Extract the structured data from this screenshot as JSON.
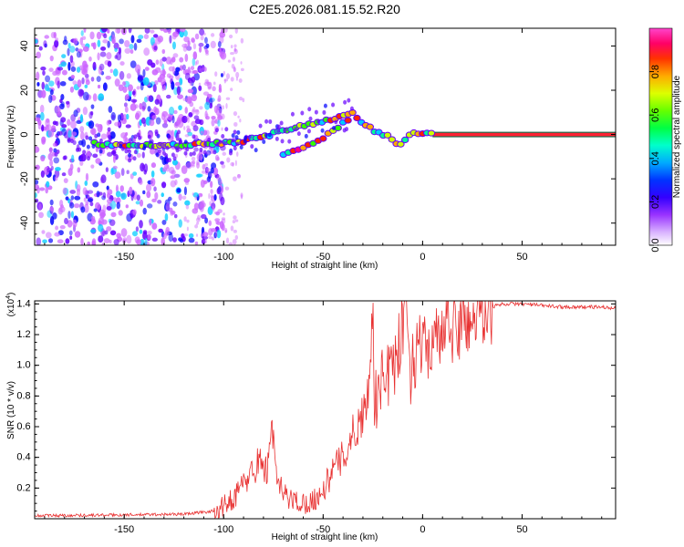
{
  "title": "C2E5.2026.081.15.52.R20",
  "chart_data": [
    {
      "type": "heatmap",
      "name": "spectrogram",
      "xlabel": "Height of straight line (km)",
      "ylabel": "Frequency (Hz)",
      "xlim": [
        -195,
        97
      ],
      "ylim": [
        -50,
        48
      ],
      "xticks": [
        -150,
        -100,
        -50,
        0,
        50
      ],
      "yticks": [
        -40,
        -20,
        0,
        20,
        40
      ],
      "colorbar": {
        "label": "Normalized spectral amplitude",
        "range": [
          0,
          1
        ],
        "ticks": [
          0.0,
          0.2,
          0.4,
          0.6,
          0.8
        ],
        "colormap": [
          "#ffffff",
          "#cc66ff",
          "#6600ff",
          "#0000ff",
          "#00ccff",
          "#00ff99",
          "#33ff00",
          "#ccff00",
          "#ffaa00",
          "#ff2200",
          "#ff0088",
          "#ff55cc"
        ]
      },
      "ridge": {
        "x": [
          -165,
          -150,
          -130,
          -110,
          -100,
          -90,
          -80,
          -70,
          -60,
          -50,
          -40,
          -35,
          -30,
          -25,
          -20,
          -15,
          -12,
          -8,
          -5,
          0,
          5,
          10,
          30,
          50,
          70,
          95
        ],
        "y": [
          -4,
          -5,
          -5,
          -4,
          -4,
          -3,
          -1,
          2,
          4,
          6,
          8,
          10,
          5,
          2,
          0,
          -2,
          -5,
          -2,
          1,
          1,
          0,
          0,
          0,
          0,
          0,
          0
        ]
      },
      "branch": {
        "x": [
          -70,
          -60,
          -50,
          -42,
          -36
        ],
        "y": [
          -9,
          -6,
          -2,
          4,
          8
        ]
      },
      "tone": {
        "x_start": 5,
        "x_end": 97,
        "y": 0
      }
    },
    {
      "type": "line",
      "name": "snr",
      "xlabel": "Height of straight line (km)",
      "ylabel": "SNR (10 * v/v)",
      "y_multiplier": "(x10",
      "y_multiplier_exp": "4",
      "y_multiplier_close": ")",
      "xlim": [
        -195,
        97
      ],
      "ylim": [
        0,
        1.42
      ],
      "xticks": [
        -150,
        -100,
        -50,
        0,
        50
      ],
      "yticks": [
        0.2,
        0.4,
        0.6,
        0.8,
        1.0,
        1.2,
        1.4
      ],
      "color": "#e83030",
      "series": [
        {
          "name": "SNR",
          "x": [
            -195,
            -150,
            -120,
            -105,
            -100,
            -95,
            -88,
            -82,
            -78,
            -76,
            -74,
            -70,
            -65,
            -60,
            -55,
            -50,
            -45,
            -40,
            -35,
            -32,
            -30,
            -28,
            -26,
            -25,
            -24,
            -22,
            -20,
            -18,
            -15,
            -12,
            -10,
            -8,
            -6,
            -5,
            -4,
            -2,
            0,
            5,
            10,
            15,
            20,
            25,
            30,
            35,
            40,
            50,
            60,
            70,
            80,
            90,
            97
          ],
          "y": [
            0.02,
            0.025,
            0.03,
            0.05,
            0.08,
            0.14,
            0.26,
            0.38,
            0.3,
            0.7,
            0.28,
            0.16,
            0.12,
            0.1,
            0.12,
            0.18,
            0.32,
            0.4,
            0.55,
            0.62,
            0.7,
            0.74,
            1.2,
            1.34,
            0.6,
            0.8,
            0.95,
            0.9,
            0.98,
            1.06,
            1.3,
            1.36,
            0.9,
            1.1,
            1.05,
            1.12,
            1.1,
            1.15,
            1.18,
            1.22,
            1.26,
            1.3,
            1.36,
            1.38,
            1.4,
            1.4,
            1.39,
            1.38,
            1.38,
            1.38,
            1.37
          ]
        }
      ]
    }
  ]
}
